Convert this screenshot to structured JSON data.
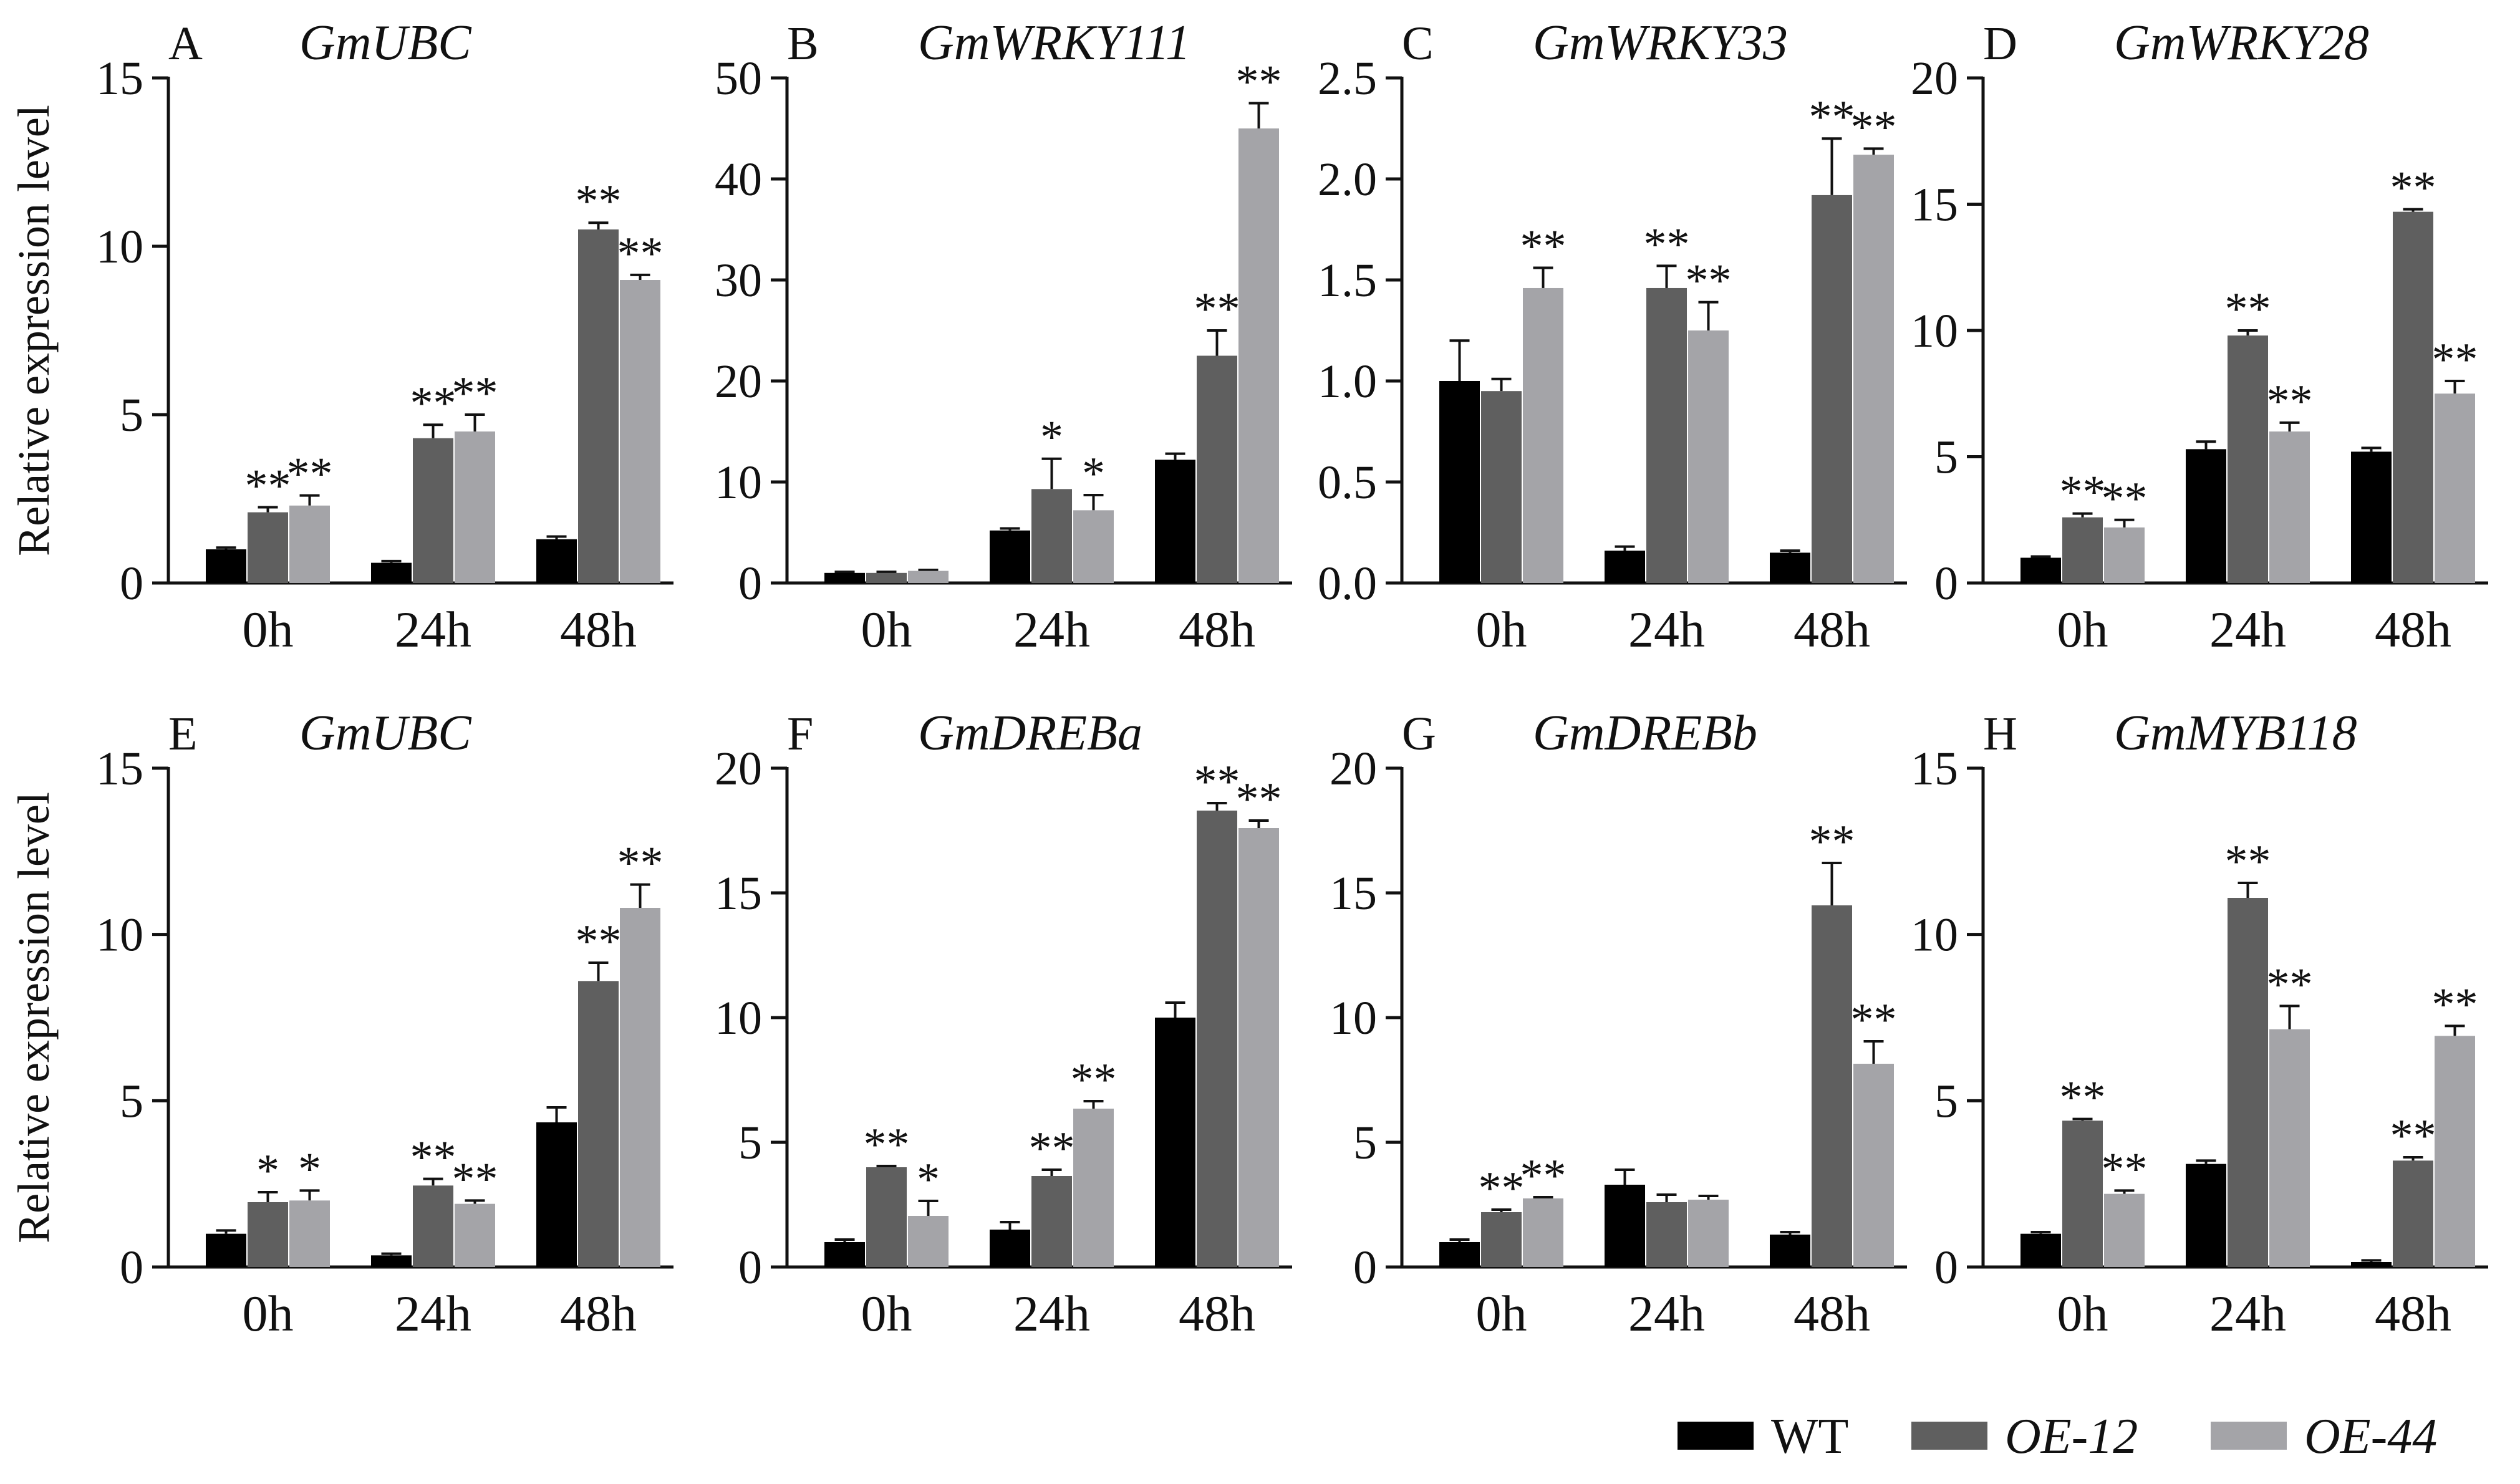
{
  "figure": {
    "ylabel": "Relative expression level",
    "categories": [
      "0h",
      "24h",
      "48h"
    ],
    "legend": [
      {
        "label": "WT",
        "color": "#000000",
        "italic": false
      },
      {
        "label": "OE-12",
        "color": "#5f5f5f",
        "italic": true
      },
      {
        "label": "OE-44",
        "color": "#a4a4a8",
        "italic": true
      }
    ],
    "colors": {
      "WT": "#000000",
      "OE-12": "#5f5f5f",
      "OE-44": "#a4a4a8",
      "axis": "#111111"
    }
  },
  "chart_data": [
    {
      "type": "bar",
      "letter": "A",
      "title": "GmUBC",
      "categories": [
        "0h",
        "24h",
        "48h"
      ],
      "ylabel": "Relative expression level",
      "ylim": [
        0,
        15
      ],
      "yticks": [
        0,
        5,
        10,
        15
      ],
      "series": [
        {
          "name": "WT",
          "values": [
            1.0,
            0.6,
            1.3
          ],
          "errors": [
            0.05,
            0.05,
            0.08
          ],
          "sig": [
            "",
            "",
            ""
          ]
        },
        {
          "name": "OE-12",
          "values": [
            2.1,
            4.3,
            10.5
          ],
          "errors": [
            0.15,
            0.4,
            0.2
          ],
          "sig": [
            "**",
            "**",
            "**"
          ]
        },
        {
          "name": "OE-44",
          "values": [
            2.3,
            4.5,
            9.0
          ],
          "errors": [
            0.3,
            0.5,
            0.15
          ],
          "sig": [
            "**",
            "**",
            "**"
          ]
        }
      ]
    },
    {
      "type": "bar",
      "letter": "B",
      "title": "GmWRKY111",
      "categories": [
        "0h",
        "24h",
        "48h"
      ],
      "ylabel": "",
      "ylim": [
        0,
        50
      ],
      "yticks": [
        0,
        10,
        20,
        30,
        40,
        50
      ],
      "series": [
        {
          "name": "WT",
          "values": [
            1.0,
            5.2,
            12.2
          ],
          "errors": [
            0.1,
            0.2,
            0.6
          ],
          "sig": [
            "",
            "",
            ""
          ]
        },
        {
          "name": "OE-12",
          "values": [
            1.0,
            9.3,
            22.5
          ],
          "errors": [
            0.1,
            3.0,
            2.5
          ],
          "sig": [
            "",
            "*",
            "**"
          ]
        },
        {
          "name": "OE-44",
          "values": [
            1.2,
            7.2,
            45.0
          ],
          "errors": [
            0.1,
            1.5,
            2.5
          ],
          "sig": [
            "",
            "*",
            "**"
          ]
        }
      ]
    },
    {
      "type": "bar",
      "letter": "C",
      "title": "GmWRKY33",
      "categories": [
        "0h",
        "24h",
        "48h"
      ],
      "ylabel": "",
      "ylim": [
        0,
        2.5
      ],
      "yticks": [
        0.0,
        0.5,
        1.0,
        1.5,
        2.0,
        2.5
      ],
      "tick_decimals": 1,
      "series": [
        {
          "name": "WT",
          "values": [
            1.0,
            0.16,
            0.15
          ],
          "errors": [
            0.2,
            0.02,
            0.01
          ],
          "sig": [
            "",
            "",
            ""
          ]
        },
        {
          "name": "OE-12",
          "values": [
            0.95,
            1.46,
            1.92
          ],
          "errors": [
            0.06,
            0.11,
            0.28
          ],
          "sig": [
            "",
            "**",
            "**"
          ]
        },
        {
          "name": "OE-44",
          "values": [
            1.46,
            1.25,
            2.12
          ],
          "errors": [
            0.1,
            0.14,
            0.03
          ],
          "sig": [
            "**",
            "**",
            "**"
          ]
        }
      ]
    },
    {
      "type": "bar",
      "letter": "D",
      "title": "GmWRKY28",
      "categories": [
        "0h",
        "24h",
        "48h"
      ],
      "ylabel": "",
      "ylim": [
        0,
        20
      ],
      "yticks": [
        0,
        5,
        10,
        15,
        20
      ],
      "series": [
        {
          "name": "WT",
          "values": [
            1.0,
            5.3,
            5.2
          ],
          "errors": [
            0.05,
            0.3,
            0.15
          ],
          "sig": [
            "",
            "",
            ""
          ]
        },
        {
          "name": "OE-12",
          "values": [
            2.6,
            9.8,
            14.7
          ],
          "errors": [
            0.15,
            0.2,
            0.1
          ],
          "sig": [
            "**",
            "**",
            "**"
          ]
        },
        {
          "name": "OE-44",
          "values": [
            2.2,
            6.0,
            7.5
          ],
          "errors": [
            0.3,
            0.35,
            0.5
          ],
          "sig": [
            "**",
            "**",
            "**"
          ]
        }
      ]
    },
    {
      "type": "bar",
      "letter": "E",
      "title": "GmUBC",
      "categories": [
        "0h",
        "24h",
        "48h"
      ],
      "ylabel": "Relative expression level",
      "ylim": [
        0,
        15
      ],
      "yticks": [
        0,
        5,
        10,
        15
      ],
      "series": [
        {
          "name": "WT",
          "values": [
            1.0,
            0.35,
            4.35
          ],
          "errors": [
            0.1,
            0.05,
            0.45
          ],
          "sig": [
            "",
            "",
            ""
          ]
        },
        {
          "name": "OE-12",
          "values": [
            1.95,
            2.45,
            8.6
          ],
          "errors": [
            0.3,
            0.2,
            0.55
          ],
          "sig": [
            "*",
            "**",
            "**"
          ]
        },
        {
          "name": "OE-44",
          "values": [
            2.0,
            1.9,
            10.8
          ],
          "errors": [
            0.3,
            0.1,
            0.7
          ],
          "sig": [
            "*",
            "**",
            "**"
          ]
        }
      ]
    },
    {
      "type": "bar",
      "letter": "F",
      "title": "GmDREBa",
      "categories": [
        "0h",
        "24h",
        "48h"
      ],
      "ylabel": "",
      "ylim": [
        0,
        20
      ],
      "yticks": [
        0,
        5,
        10,
        15,
        20
      ],
      "series": [
        {
          "name": "WT",
          "values": [
            1.0,
            1.5,
            10.0
          ],
          "errors": [
            0.1,
            0.3,
            0.6
          ],
          "sig": [
            "",
            "",
            ""
          ]
        },
        {
          "name": "OE-12",
          "values": [
            4.0,
            3.65,
            18.3
          ],
          "errors": [
            0.05,
            0.25,
            0.3
          ],
          "sig": [
            "**",
            "**",
            "**"
          ]
        },
        {
          "name": "OE-44",
          "values": [
            2.05,
            6.35,
            17.6
          ],
          "errors": [
            0.6,
            0.3,
            0.3
          ],
          "sig": [
            "*",
            "**",
            "**"
          ]
        }
      ]
    },
    {
      "type": "bar",
      "letter": "G",
      "title": "GmDREBb",
      "categories": [
        "0h",
        "24h",
        "48h"
      ],
      "ylabel": "",
      "ylim": [
        0,
        20
      ],
      "yticks": [
        0,
        5,
        10,
        15,
        20
      ],
      "series": [
        {
          "name": "WT",
          "values": [
            1.0,
            3.3,
            1.3
          ],
          "errors": [
            0.1,
            0.6,
            0.1
          ],
          "sig": [
            "",
            "",
            ""
          ]
        },
        {
          "name": "OE-12",
          "values": [
            2.2,
            2.6,
            14.5
          ],
          "errors": [
            0.1,
            0.3,
            1.7
          ],
          "sig": [
            "**",
            "",
            "**"
          ]
        },
        {
          "name": "OE-44",
          "values": [
            2.75,
            2.7,
            8.15
          ],
          "errors": [
            0.05,
            0.15,
            0.9
          ],
          "sig": [
            "**",
            "",
            "**"
          ]
        }
      ]
    },
    {
      "type": "bar",
      "letter": "H",
      "title": "GmMYB118",
      "categories": [
        "0h",
        "24h",
        "48h"
      ],
      "ylabel": "",
      "ylim": [
        0,
        15
      ],
      "yticks": [
        0,
        5,
        10,
        15
      ],
      "series": [
        {
          "name": "WT",
          "values": [
            1.0,
            3.1,
            0.15
          ],
          "errors": [
            0.05,
            0.1,
            0.05
          ],
          "sig": [
            "",
            "",
            ""
          ]
        },
        {
          "name": "OE-12",
          "values": [
            4.4,
            11.1,
            3.2
          ],
          "errors": [
            0.05,
            0.45,
            0.1
          ],
          "sig": [
            "**",
            "**",
            "**"
          ]
        },
        {
          "name": "OE-44",
          "values": [
            2.2,
            7.15,
            6.95
          ],
          "errors": [
            0.1,
            0.7,
            0.3
          ],
          "sig": [
            "**",
            "**",
            "**"
          ]
        }
      ]
    }
  ]
}
